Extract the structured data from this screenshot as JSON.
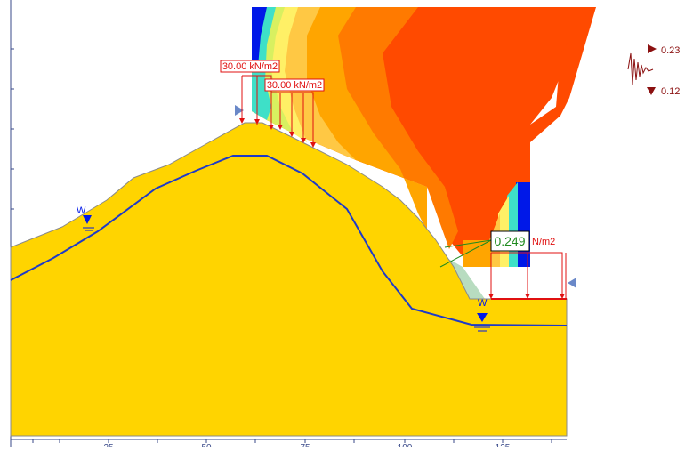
{
  "loads": {
    "load1_label": "30.00 kN/m2",
    "load2_label": "30.00 kN/m2",
    "load3_label": "N/m2"
  },
  "factor_of_safety": "0.249",
  "water_marker": "W",
  "seismic": {
    "horizontal": "0.23",
    "vertical": "0.12"
  },
  "x_axis": {
    "tick_labels": [
      "25",
      "50",
      "75",
      "100",
      "125"
    ]
  },
  "colors": {
    "soil": "#FFD400",
    "water_table": "#1E3AC8",
    "load_arrows": "#E01010",
    "fos_text": "#1E8A1E",
    "seismic_arrows": "#8B1010",
    "slip_surface": "#B8DCC0"
  }
}
